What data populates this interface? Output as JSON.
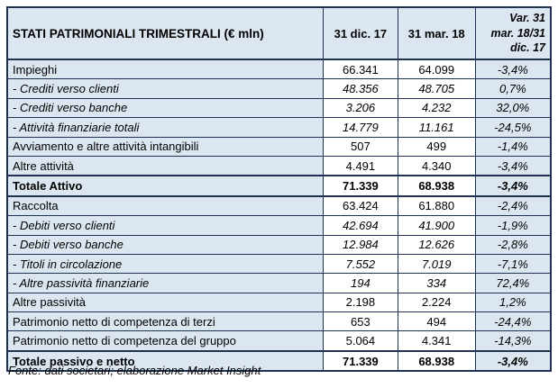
{
  "colors": {
    "shaded_cell_fill": "#dce6f1",
    "white_cell_fill": "#ffffff",
    "border": "#1f3253",
    "text": "#000000"
  },
  "table": {
    "header": {
      "title": "STATI PATRIMONIALI TRIMESTRALI (€ mln)",
      "col_dic17": "31 dic. 17",
      "col_mar18": "31 mar. 18",
      "col_var": "Var. 31\nmar. 18/31\ndic. 17"
    },
    "rows": [
      {
        "label": "Impieghi",
        "dic17": "66.341",
        "mar18": "64.099",
        "var": "-3,4%",
        "style": "normal"
      },
      {
        "label": "- Crediti verso clienti",
        "dic17": "48.356",
        "mar18": "48.705",
        "var": "0,7%",
        "style": "sub"
      },
      {
        "label": "- Crediti verso banche",
        "dic17": "3.206",
        "mar18": "4.232",
        "var": "32,0%",
        "style": "sub"
      },
      {
        "label": "- Attività finanziarie totali",
        "dic17": "14.779",
        "mar18": "11.161",
        "var": "-24,5%",
        "style": "sub"
      },
      {
        "label": "Avviamento e altre attività intangibili",
        "dic17": "507",
        "mar18": "499",
        "var": "-1,4%",
        "style": "normal"
      },
      {
        "label": "Altre attività",
        "dic17": "4.491",
        "mar18": "4.340",
        "var": "-3,4%",
        "style": "normal"
      },
      {
        "label": "Totale Attivo",
        "dic17": "71.339",
        "mar18": "68.938",
        "var": "-3,4%",
        "style": "total"
      },
      {
        "label": "Raccolta",
        "dic17": "63.424",
        "mar18": "61.880",
        "var": "-2,4%",
        "style": "normal"
      },
      {
        "label": "- Debiti verso clienti",
        "dic17": "42.694",
        "mar18": "41.900",
        "var": "-1,9%",
        "style": "sub"
      },
      {
        "label": "- Debiti verso banche",
        "dic17": "12.984",
        "mar18": "12.626",
        "var": "-2,8%",
        "style": "sub"
      },
      {
        "label": "- Titoli in circolazione",
        "dic17": "7.552",
        "mar18": "7.019",
        "var": "-7,1%",
        "style": "sub"
      },
      {
        "label": "- Altre passività finanziarie",
        "dic17": "194",
        "mar18": "334",
        "var": "72,4%",
        "style": "sub"
      },
      {
        "label": "Altre passività",
        "dic17": "2.198",
        "mar18": "2.224",
        "var": "1,2%",
        "style": "normal"
      },
      {
        "label": "Patrimonio netto di competenza di terzi",
        "dic17": "653",
        "mar18": "494",
        "var": "-24,4%",
        "style": "normal"
      },
      {
        "label": "Patrimonio netto di competenza del gruppo",
        "dic17": "5.064",
        "mar18": "4.341",
        "var": "-14,3%",
        "style": "normal"
      },
      {
        "label": "Totale passivo e netto",
        "dic17": "71.339",
        "mar18": "68.938",
        "var": "-3,4%",
        "style": "total"
      }
    ]
  },
  "footer": {
    "source": "Fonte: dati societari; elaborazione Market Insight"
  }
}
